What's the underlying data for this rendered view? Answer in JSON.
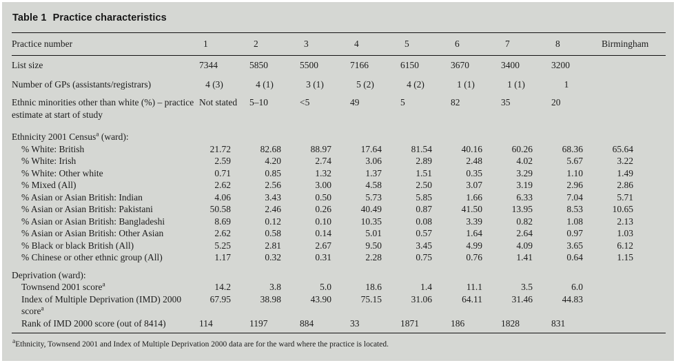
{
  "page": {
    "title_prefix": "Table 1",
    "title": "Practice characteristics"
  },
  "table": {
    "header": {
      "label": "Practice number",
      "columns": [
        "1",
        "2",
        "3",
        "4",
        "5",
        "6",
        "7",
        "8",
        "Birmingham"
      ]
    },
    "rows": [
      {
        "type": "data",
        "align": "left",
        "indent": false,
        "label": [
          {
            "t": "List size"
          }
        ],
        "values": [
          "7344",
          "5850",
          "5500",
          "7166",
          "6150",
          "3670",
          "3400",
          "3200",
          ""
        ]
      },
      {
        "type": "data",
        "align": "center",
        "indent": false,
        "label": [
          {
            "t": "Number of GPs (assistants/registrars)"
          }
        ],
        "values": [
          "4 (3)",
          "4 (1)",
          "3 (1)",
          "5 (2)",
          "4 (2)",
          "1 (1)",
          "1 (1)",
          "1",
          ""
        ]
      },
      {
        "type": "data",
        "align": "left",
        "indent": false,
        "label": [
          {
            "t": "Ethnic minorities other than white (%) – practice estimate at start of study"
          }
        ],
        "values": [
          "Not stated",
          "5–10",
          "<5",
          "49",
          "5",
          "82",
          "35",
          "20",
          ""
        ]
      },
      {
        "type": "section",
        "label": [
          {
            "t": "Ethnicity 2001 Census"
          },
          {
            "t": "a",
            "sup": true
          },
          {
            "t": " (ward):"
          }
        ]
      },
      {
        "type": "data",
        "align": "right",
        "indent": true,
        "label": [
          {
            "t": "% White: British"
          }
        ],
        "values": [
          "21.72",
          "82.68",
          "88.97",
          "17.64",
          "81.54",
          "40.16",
          "60.26",
          "68.36",
          "65.64"
        ]
      },
      {
        "type": "data",
        "align": "right",
        "indent": true,
        "label": [
          {
            "t": "% White: Irish"
          }
        ],
        "values": [
          "2.59",
          "4.20",
          "2.74",
          "3.06",
          "2.89",
          "2.48",
          "4.02",
          "5.67",
          "3.22"
        ]
      },
      {
        "type": "data",
        "align": "right",
        "indent": true,
        "label": [
          {
            "t": "% White: Other white"
          }
        ],
        "values": [
          "0.71",
          "0.85",
          "1.32",
          "1.37",
          "1.51",
          "0.35",
          "3.29",
          "1.10",
          "1.49"
        ]
      },
      {
        "type": "data",
        "align": "right",
        "indent": true,
        "label": [
          {
            "t": "% Mixed (All)"
          }
        ],
        "values": [
          "2.62",
          "2.56",
          "3.00",
          "4.58",
          "2.50",
          "3.07",
          "3.19",
          "2.96",
          "2.86"
        ]
      },
      {
        "type": "data",
        "align": "right",
        "indent": true,
        "label": [
          {
            "t": "% Asian or Asian British: Indian"
          }
        ],
        "values": [
          "4.06",
          "3.43",
          "0.50",
          "5.73",
          "5.85",
          "1.66",
          "6.33",
          "7.04",
          "5.71"
        ]
      },
      {
        "type": "data",
        "align": "right",
        "indent": true,
        "label": [
          {
            "t": "% Asian or Asian British: Pakistani"
          }
        ],
        "values": [
          "50.58",
          "2.46",
          "0.26",
          "40.49",
          "0.87",
          "41.50",
          "13.95",
          "8.53",
          "10.65"
        ]
      },
      {
        "type": "data",
        "align": "right",
        "indent": true,
        "label": [
          {
            "t": "% Asian or Asian British: Bangladeshi"
          }
        ],
        "values": [
          "8.69",
          "0.12",
          "0.10",
          "10.35",
          "0.08",
          "3.39",
          "0.82",
          "1.08",
          "2.13"
        ]
      },
      {
        "type": "data",
        "align": "right",
        "indent": true,
        "label": [
          {
            "t": "% Asian or Asian British: Other Asian"
          }
        ],
        "values": [
          "2.62",
          "0.58",
          "0.14",
          "5.01",
          "0.57",
          "1.64",
          "2.64",
          "0.97",
          "1.03"
        ]
      },
      {
        "type": "data",
        "align": "right",
        "indent": true,
        "label": [
          {
            "t": "% Black or black British (All)"
          }
        ],
        "values": [
          "5.25",
          "2.81",
          "2.67",
          "9.50",
          "3.45",
          "4.99",
          "4.09",
          "3.65",
          "6.12"
        ]
      },
      {
        "type": "data",
        "align": "right",
        "indent": true,
        "label": [
          {
            "t": "% Chinese or other ethnic group (All)"
          }
        ],
        "values": [
          "1.17",
          "0.32",
          "0.31",
          "2.28",
          "0.75",
          "0.76",
          "1.41",
          "0.64",
          "1.15"
        ]
      },
      {
        "type": "section",
        "label": [
          {
            "t": "Deprivation (ward):"
          }
        ]
      },
      {
        "type": "data",
        "align": "right",
        "indent": true,
        "label": [
          {
            "t": "Townsend 2001 score"
          },
          {
            "t": "a",
            "sup": true
          }
        ],
        "values": [
          "14.2",
          "3.8",
          "5.0",
          "18.6",
          "1.4",
          "11.1",
          "3.5",
          "6.0",
          ""
        ]
      },
      {
        "type": "data",
        "align": "right",
        "indent": true,
        "label": [
          {
            "t": "Index of Multiple Deprivation (IMD) 2000 score"
          },
          {
            "t": "a",
            "sup": true
          }
        ],
        "values": [
          "67.95",
          "38.98",
          "43.90",
          "75.15",
          "31.06",
          "64.11",
          "31.46",
          "44.83",
          ""
        ]
      },
      {
        "type": "data",
        "align": "left",
        "indent": true,
        "label": [
          {
            "t": "Rank of IMD 2000 score (out of 8414)"
          }
        ],
        "values": [
          "114",
          "1197",
          "884",
          "33",
          "1871",
          "186",
          "1828",
          "831",
          ""
        ]
      }
    ],
    "footnote": {
      "sup": "a",
      "text": "Ethnicity, Townsend 2001 and Index of Multiple Deprivation 2000 data are for the ward where the practice is located."
    }
  }
}
